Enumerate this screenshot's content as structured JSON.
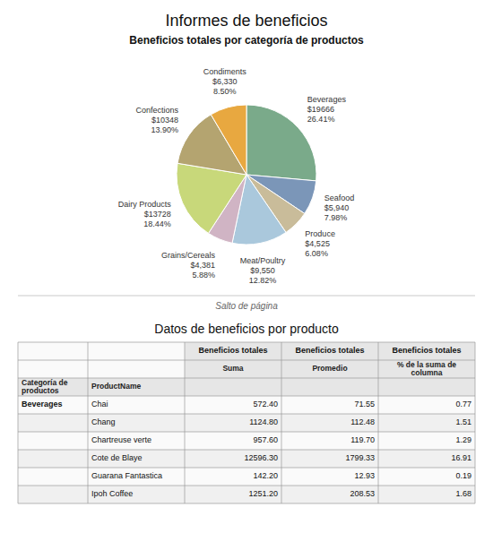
{
  "chart_data": [
    {
      "type": "pie",
      "title": "Informes de beneficios",
      "subtitle": "Beneficios totales por categoría de productos",
      "categories": [
        "Beverages",
        "Seafood",
        "Produce",
        "Meat/Poultry",
        "Grains/Cereals",
        "Dairy Products",
        "Confections",
        "Condiments"
      ],
      "values": [
        19666,
        5940,
        4525,
        9550,
        4381,
        13728,
        10348,
        6330
      ],
      "value_labels": [
        "$19666",
        "$5,940",
        "$4,525",
        "$9,550",
        "$4,381",
        "$13728",
        "$10348",
        "$6,330"
      ],
      "percentages": [
        26.41,
        7.98,
        6.08,
        12.82,
        5.88,
        18.44,
        13.9,
        8.5
      ],
      "percentage_labels": [
        "26.41%",
        "7.98%",
        "6.08%",
        "12.82%",
        "5.88%",
        "18.44%",
        "13.90%",
        "8.50%"
      ],
      "colors": [
        "#7aaa8a",
        "#7b96b8",
        "#c9bc9a",
        "#aac8dc",
        "#d0b4c4",
        "#c8d87a",
        "#b4a470",
        "#e8a840"
      ],
      "annotations": [
        "Salto de página"
      ]
    },
    {
      "type": "table",
      "title": "Datos de beneficios por producto",
      "group_headers": [
        "Beneficios totales",
        "Beneficios totales",
        "Beneficios totales"
      ],
      "row_headers": [
        "Categoría de\nproductos",
        "ProductName"
      ],
      "category": "Beverages",
      "categories": [
        "Chai",
        "Chang",
        "Chartreuse verte",
        "Cote de Blaye",
        "Guarana Fantastica",
        "Ipoh Coffee"
      ],
      "series": [
        {
          "name": "Suma",
          "values": [
            572.4,
            1124.8,
            957.6,
            12596.3,
            142.2,
            1251.2
          ],
          "value_labels": [
            "572.40",
            "1124.80",
            "957.60",
            "12596.30",
            "142.20",
            "1251.20"
          ]
        },
        {
          "name": "Promedio",
          "values": [
            71.55,
            112.48,
            119.7,
            1799.33,
            12.93,
            208.53
          ],
          "value_labels": [
            "71.55",
            "112.48",
            "119.70",
            "1799.33",
            "12.93",
            "208.53"
          ]
        },
        {
          "name": "% de la suma de\ncolumna",
          "values": [
            0.77,
            1.51,
            1.29,
            16.91,
            0.19,
            1.68
          ],
          "value_labels": [
            "0.77",
            "1.51",
            "1.29",
            "16.91",
            "0.19",
            "1.68"
          ]
        }
      ]
    }
  ]
}
